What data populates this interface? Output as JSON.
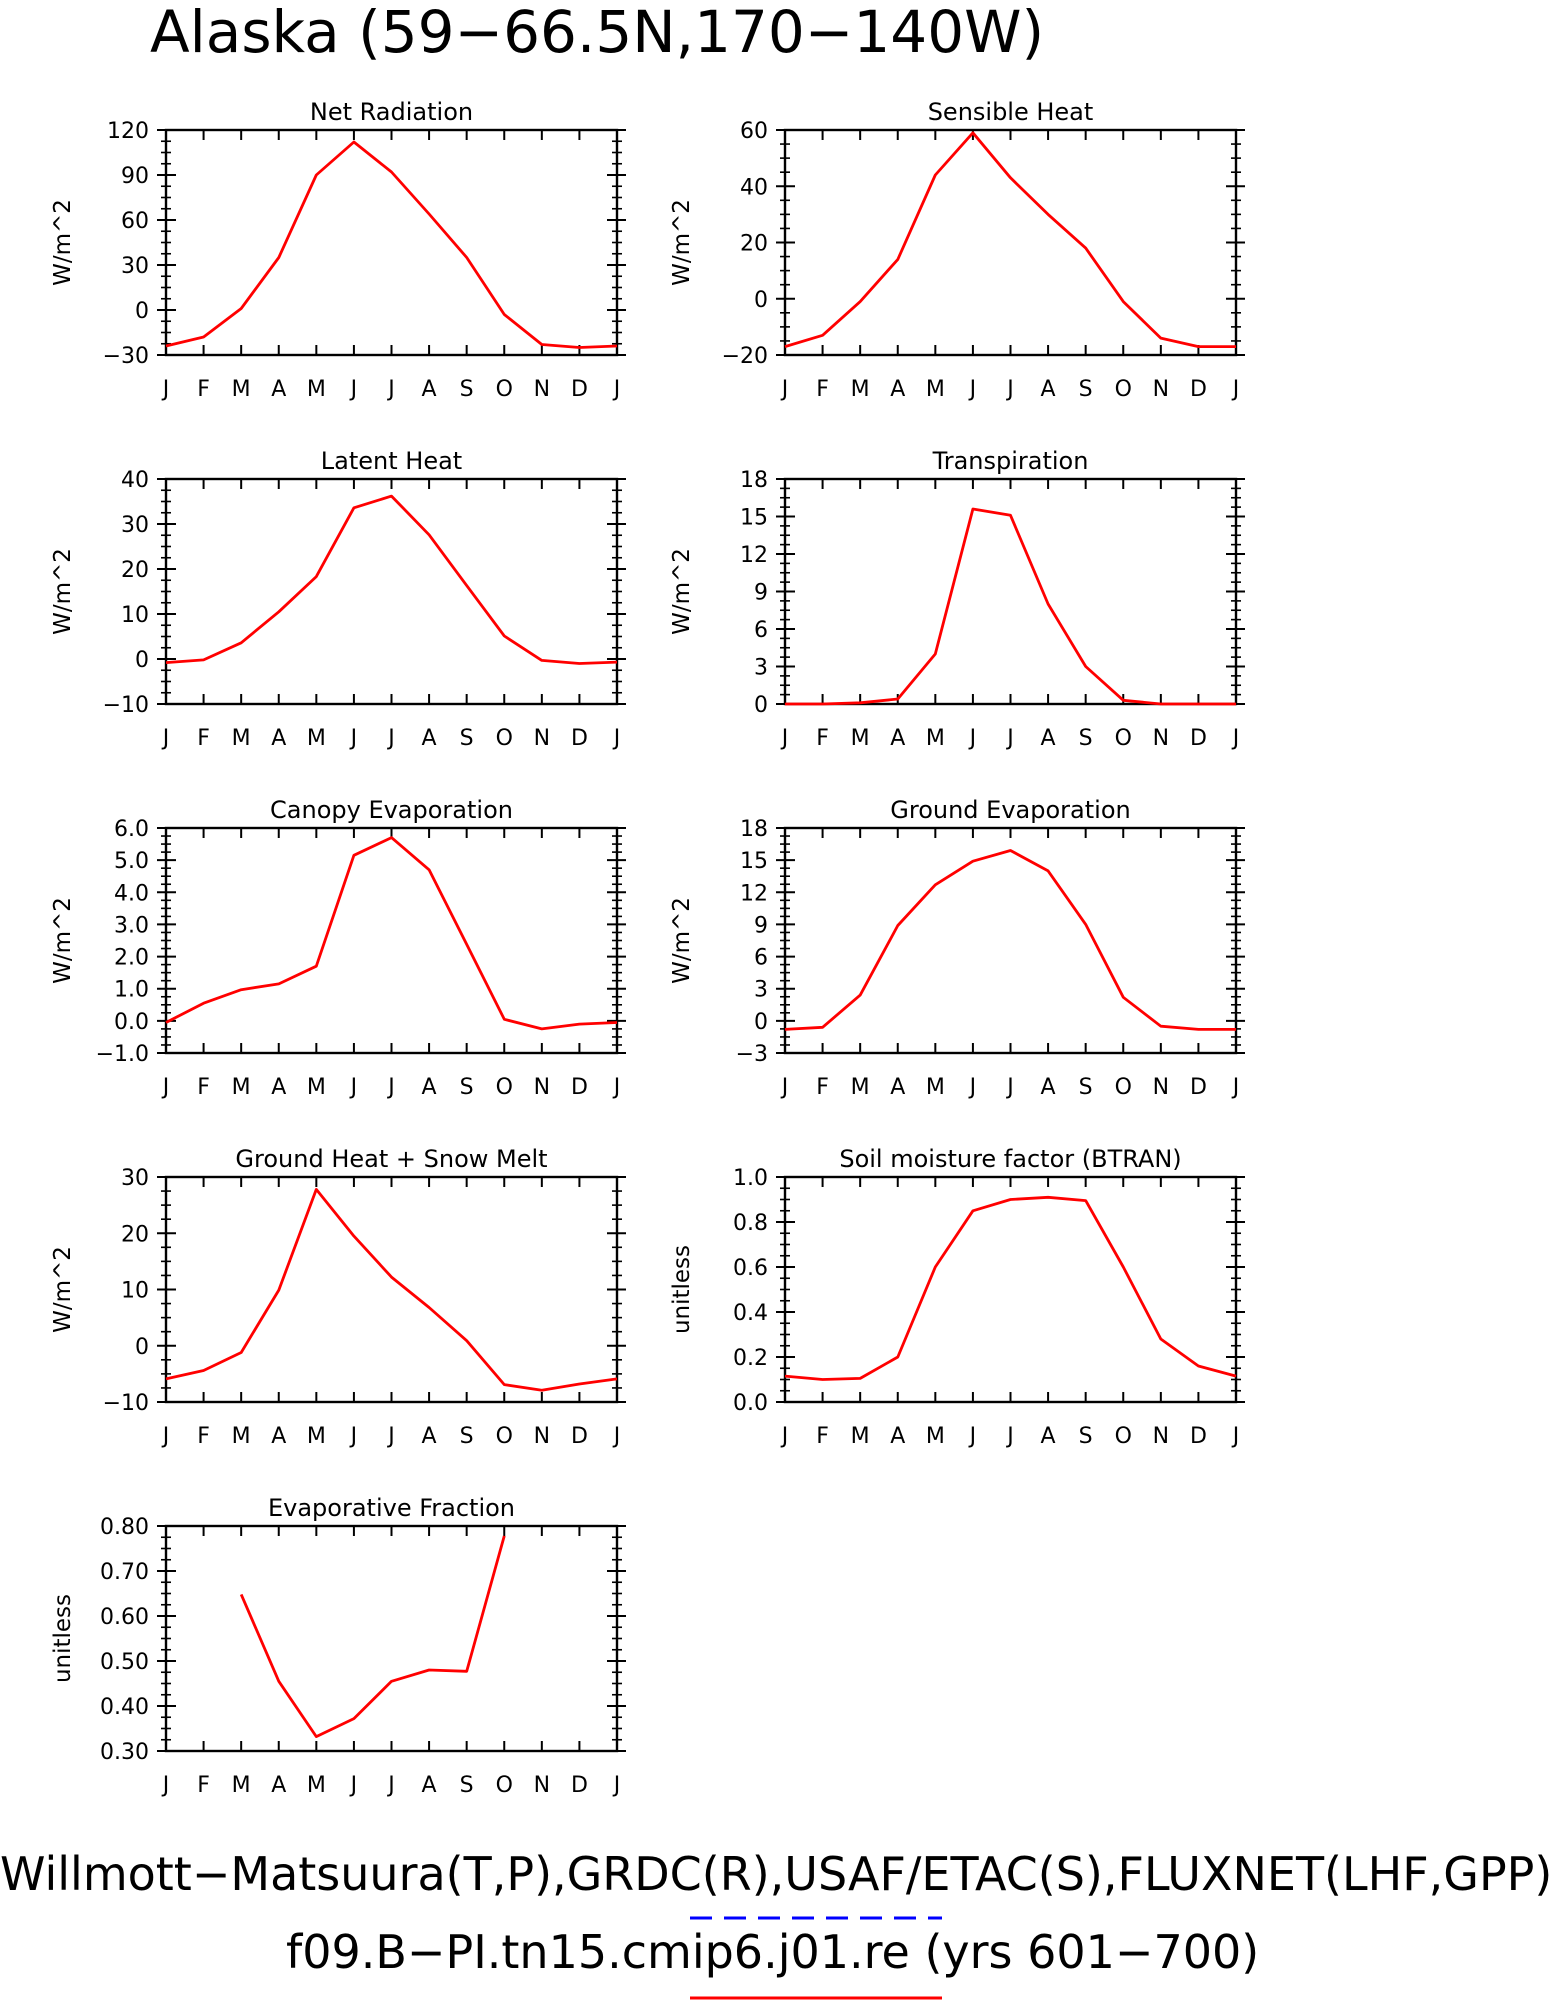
{
  "figure": {
    "title": "Alaska (59−66.5N,170−140W)",
    "footer_line1": "Willmott−Matsuura(T,P),GRDC(R),USAF/ETAC(S),FLUXNET(LHF,GPP)",
    "footer_line2": "f09.B−PI.tn15.cmip6.j01.re (yrs 601−700)",
    "legend_obs_color": "#0000ff",
    "legend_model_color": "#ff0000"
  },
  "chart_data": [
    {
      "type": "line",
      "title": "Net Radiation",
      "ylabel": "W/m^2",
      "x": [
        "J",
        "F",
        "M",
        "A",
        "M",
        "J",
        "J",
        "A",
        "S",
        "O",
        "N",
        "D",
        "J"
      ],
      "yticks": [
        "−30",
        "0",
        "30",
        "60",
        "90",
        "120"
      ],
      "ylim": [
        -30,
        120
      ],
      "series": [
        {
          "color": "#ff0000",
          "values": [
            -24,
            -18,
            1,
            35,
            90,
            112,
            92,
            64,
            35,
            -3,
            -23,
            -25,
            -24
          ]
        }
      ]
    },
    {
      "type": "line",
      "title": "Sensible Heat",
      "ylabel": "W/m^2",
      "x": [
        "J",
        "F",
        "M",
        "A",
        "M",
        "J",
        "J",
        "A",
        "S",
        "O",
        "N",
        "D",
        "J"
      ],
      "yticks": [
        "−20",
        "0",
        "20",
        "40",
        "60"
      ],
      "ylim": [
        -20,
        60
      ],
      "series": [
        {
          "color": "#ff0000",
          "values": [
            -17,
            -13,
            -1,
            14,
            44,
            59,
            43,
            30,
            18,
            -1,
            -14,
            -17,
            -17
          ]
        }
      ]
    },
    {
      "type": "line",
      "title": "Latent Heat",
      "ylabel": "W/m^2",
      "x": [
        "J",
        "F",
        "M",
        "A",
        "M",
        "J",
        "J",
        "A",
        "S",
        "O",
        "N",
        "D",
        "J"
      ],
      "yticks": [
        "−10",
        "0",
        "10",
        "20",
        "30",
        "40"
      ],
      "ylim": [
        -10,
        40
      ],
      "series": [
        {
          "color": "#ff0000",
          "values": [
            -0.8,
            -0.2,
            3.6,
            10.5,
            18.3,
            33.6,
            36.2,
            27.6,
            16.3,
            5.1,
            -0.3,
            -1,
            -0.7
          ]
        }
      ]
    },
    {
      "type": "line",
      "title": "Transpiration",
      "ylabel": "W/m^2",
      "x": [
        "J",
        "F",
        "M",
        "A",
        "M",
        "J",
        "J",
        "A",
        "S",
        "O",
        "N",
        "D",
        "J"
      ],
      "yticks": [
        "0",
        "3",
        "6",
        "9",
        "12",
        "15",
        "18"
      ],
      "ylim": [
        0,
        18
      ],
      "series": [
        {
          "color": "#ff0000",
          "values": [
            0,
            0,
            0.1,
            0.4,
            4.0,
            15.6,
            15.1,
            8.0,
            3.0,
            0.3,
            0,
            0,
            0
          ]
        }
      ]
    },
    {
      "type": "line",
      "title": "Canopy Evaporation",
      "ylabel": "W/m^2",
      "x": [
        "J",
        "F",
        "M",
        "A",
        "M",
        "J",
        "J",
        "A",
        "S",
        "O",
        "N",
        "D",
        "J"
      ],
      "yticks": [
        "−1.0",
        "0.0",
        "1.0",
        "2.0",
        "3.0",
        "4.0",
        "5.0",
        "6.0"
      ],
      "ylim": [
        -1,
        6
      ],
      "series": [
        {
          "color": "#ff0000",
          "values": [
            -0.05,
            0.55,
            0.97,
            1.15,
            1.7,
            5.15,
            5.7,
            4.7,
            2.38,
            0.05,
            -0.25,
            -0.1,
            -0.05
          ]
        }
      ]
    },
    {
      "type": "line",
      "title": "Ground Evaporation",
      "ylabel": "W/m^2",
      "x": [
        "J",
        "F",
        "M",
        "A",
        "M",
        "J",
        "J",
        "A",
        "S",
        "O",
        "N",
        "D",
        "J"
      ],
      "yticks": [
        "−3",
        "0",
        "3",
        "6",
        "9",
        "12",
        "15",
        "18"
      ],
      "ylim": [
        -3,
        18
      ],
      "series": [
        {
          "color": "#ff0000",
          "values": [
            -0.8,
            -0.6,
            2.4,
            8.9,
            12.7,
            14.9,
            15.9,
            14.0,
            9.0,
            2.2,
            -0.5,
            -0.8,
            -0.8
          ]
        }
      ]
    },
    {
      "type": "line",
      "title": "Ground Heat + Snow Melt",
      "ylabel": "W/m^2",
      "x": [
        "J",
        "F",
        "M",
        "A",
        "M",
        "J",
        "J",
        "A",
        "S",
        "O",
        "N",
        "D",
        "J"
      ],
      "yticks": [
        "−10",
        "0",
        "10",
        "20",
        "30"
      ],
      "ylim": [
        -10,
        30
      ],
      "series": [
        {
          "color": "#ff0000",
          "values": [
            -5.9,
            -4.4,
            -1.2,
            9.9,
            27.8,
            19.5,
            12.2,
            6.8,
            0.9,
            -6.9,
            -7.9,
            -6.8,
            -5.9
          ]
        }
      ]
    },
    {
      "type": "line",
      "title": "Soil moisture factor (BTRAN)",
      "ylabel": "unitless",
      "x": [
        "J",
        "F",
        "M",
        "A",
        "M",
        "J",
        "J",
        "A",
        "S",
        "O",
        "N",
        "D",
        "J"
      ],
      "yticks": [
        "0.0",
        "0.2",
        "0.4",
        "0.6",
        "0.8",
        "1.0"
      ],
      "ylim": [
        0,
        1
      ],
      "series": [
        {
          "color": "#ff0000",
          "values": [
            0.115,
            0.1,
            0.105,
            0.2,
            0.6,
            0.85,
            0.9,
            0.91,
            0.895,
            0.6,
            0.28,
            0.16,
            0.115
          ]
        }
      ]
    },
    {
      "type": "line",
      "title": "Evaporative Fraction",
      "ylabel": "unitless",
      "x": [
        "J",
        "F",
        "M",
        "A",
        "M",
        "J",
        "J",
        "A",
        "S",
        "O",
        "N",
        "D",
        "J"
      ],
      "yticks": [
        "0.30",
        "0.40",
        "0.50",
        "0.60",
        "0.70",
        "0.80"
      ],
      "ylim": [
        0.3,
        0.8
      ],
      "series": [
        {
          "color": "#ff0000",
          "values": [
            null,
            null,
            0.648,
            0.455,
            0.332,
            0.372,
            0.455,
            0.48,
            0.477,
            0.778,
            null,
            null,
            null
          ]
        }
      ]
    }
  ]
}
